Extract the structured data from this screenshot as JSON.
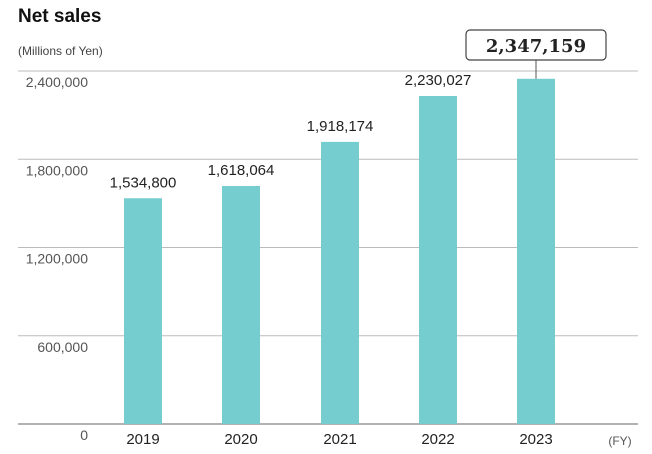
{
  "chart_data": {
    "type": "bar",
    "title": "Net sales",
    "unit_label": "(Millions of Yen)",
    "x_suffix": "(FY)",
    "categories": [
      "2019",
      "2020",
      "2021",
      "2022",
      "2023"
    ],
    "values": [
      1534800,
      1618064,
      1918174,
      2230027,
      2347159
    ],
    "value_labels": [
      "1,534,800",
      "1,618,064",
      "1,918,174",
      "2,230,027",
      "2,347,159"
    ],
    "yticks": [
      0,
      600000,
      1200000,
      1800000,
      2400000
    ],
    "ytick_labels": [
      "0",
      "600,000",
      "1,200,000",
      "1,800,000",
      "2,400,000"
    ],
    "ylim": [
      0,
      2400000
    ],
    "highlighted_category": "2023",
    "grid": true,
    "colors": {
      "bar": "#76cdd0",
      "grid": "#bbbbbb",
      "axis": "#666666"
    }
  }
}
